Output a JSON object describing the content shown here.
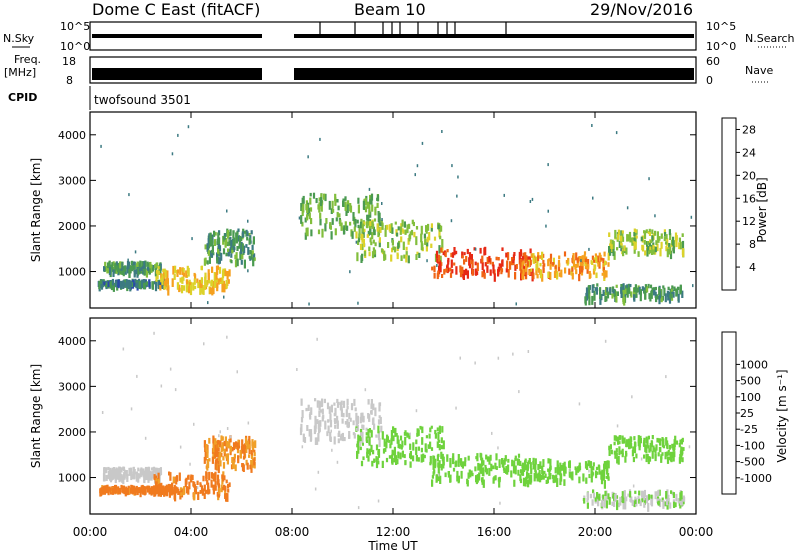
{
  "header": {
    "site": "Dome C East (fitACF)",
    "beam": "Beam 10",
    "date": "29/Nov/2016"
  },
  "status_panels": {
    "nsky": {
      "label": "N.Sky",
      "scale_top": "10^5",
      "scale_bottom": "10^0"
    },
    "nsearch": {
      "label": "N.Search",
      "scale_top": "10^5",
      "scale_bottom": "10^0"
    },
    "freq": {
      "label_line1": "Freq.",
      "label_line2": "[MHz]",
      "scale_top": "18",
      "scale_bottom": "8"
    },
    "nave": {
      "label": "Nave",
      "scale_top": "60",
      "scale_bottom": "0"
    },
    "cpid": {
      "label": "CPID",
      "program": "twofsound 3501"
    }
  },
  "chart_data": [
    {
      "type": "heatmap",
      "panel": "power",
      "ylabel": "Slant Range [km]",
      "ylim": [
        200,
        4500
      ],
      "yticks": [
        "1000",
        "2000",
        "3000",
        "4000"
      ],
      "xlim": [
        "00:00",
        "24:00"
      ],
      "xticks": [
        "00:00",
        "04:00",
        "08:00",
        "12:00",
        "16:00",
        "20:00",
        "00:00"
      ],
      "colorbar": {
        "label": "Power [dB]",
        "ticks": [
          "4",
          "8",
          "12",
          "16",
          "20",
          "24",
          "28"
        ],
        "range": [
          0,
          30
        ],
        "colors": [
          "#0a1ee6",
          "#2a4aa8",
          "#3c7a82",
          "#4a9a50",
          "#82be3c",
          "#dcd22a",
          "#f5a01e",
          "#f06414",
          "#e62814",
          "#dc0000"
        ]
      },
      "regions": [
        {
          "t0": 0.5,
          "t1": 2.8,
          "r0": 1000,
          "r1": 1200,
          "value": 10
        },
        {
          "t0": 0.3,
          "t1": 3.0,
          "r0": 700,
          "r1": 800,
          "value": 8
        },
        {
          "t0": 2.5,
          "t1": 5.5,
          "r0": 600,
          "r1": 1100,
          "value": 18
        },
        {
          "t0": 4.5,
          "t1": 6.5,
          "r0": 1200,
          "r1": 1900,
          "value": 10
        },
        {
          "t0": 8.3,
          "t1": 11.5,
          "r0": 1800,
          "r1": 2700,
          "value": 12
        },
        {
          "t0": 10.5,
          "t1": 14.0,
          "r0": 1300,
          "r1": 2100,
          "value": 14
        },
        {
          "t0": 13.5,
          "t1": 17.5,
          "r0": 900,
          "r1": 1500,
          "value": 24
        },
        {
          "t0": 17.0,
          "t1": 20.5,
          "r0": 900,
          "r1": 1400,
          "value": 20
        },
        {
          "t0": 19.5,
          "t1": 23.5,
          "r0": 400,
          "r1": 700,
          "value": 10
        },
        {
          "t0": 20.5,
          "t1": 23.5,
          "r0": 1400,
          "r1": 1900,
          "value": 14
        }
      ]
    },
    {
      "type": "heatmap",
      "panel": "velocity",
      "ylabel": "Slant Range [km]",
      "ylim": [
        200,
        4500
      ],
      "yticks": [
        "1000",
        "2000",
        "3000",
        "4000"
      ],
      "xlabel": "Time UT",
      "xlim": [
        "00:00",
        "24:00"
      ],
      "xticks": [
        "00:00",
        "04:00",
        "08:00",
        "12:00",
        "16:00",
        "20:00",
        "00:00"
      ],
      "colorbar": {
        "label": "Velocity [m s⁻¹]",
        "ticks": [
          "-1000",
          "-500",
          "-100",
          "-25",
          "25",
          "100",
          "500",
          "1000"
        ],
        "colors": [
          "#e60000",
          "#f04614",
          "#f07a1e",
          "#f0a028",
          "#f5c83c",
          "#c8c8c8",
          "#6ed23c",
          "#3c9650",
          "#2a7a78",
          "#2a4ab4"
        ]
      },
      "regions": [
        {
          "t0": 0.5,
          "t1": 2.8,
          "r0": 1000,
          "r1": 1200,
          "class": "ground",
          "value": 0
        },
        {
          "t0": 0.3,
          "t1": 3.0,
          "r0": 700,
          "r1": 800,
          "value": -150
        },
        {
          "t0": 2.5,
          "t1": 5.5,
          "r0": 600,
          "r1": 1100,
          "value": -150
        },
        {
          "t0": 4.5,
          "t1": 6.5,
          "r0": 1200,
          "r1": 1900,
          "value": -100
        },
        {
          "t0": 8.3,
          "t1": 11.5,
          "r0": 1800,
          "r1": 2700,
          "class": "ground",
          "value": 0
        },
        {
          "t0": 10.5,
          "t1": 14.0,
          "r0": 1300,
          "r1": 2100,
          "value": 200
        },
        {
          "t0": 13.5,
          "t1": 17.5,
          "r0": 900,
          "r1": 1500,
          "value": 300
        },
        {
          "t0": 17.0,
          "t1": 20.5,
          "r0": 900,
          "r1": 1400,
          "value": 300
        },
        {
          "t0": 19.5,
          "t1": 23.5,
          "r0": 400,
          "r1": 700,
          "value": 90
        },
        {
          "t0": 20.5,
          "t1": 23.5,
          "r0": 1400,
          "r1": 1900,
          "value": 250
        }
      ]
    }
  ]
}
